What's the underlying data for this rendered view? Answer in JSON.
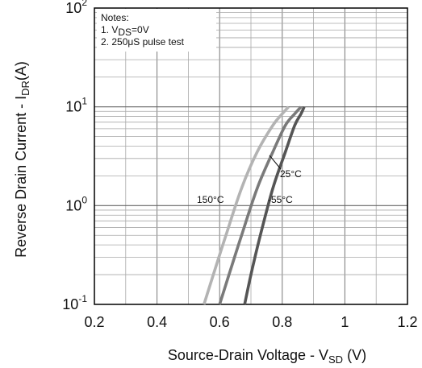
{
  "chart_data": {
    "type": "line",
    "title": "",
    "xlabel": {
      "prefix": "Source-Drain Voltage - V",
      "sub": "SD",
      "suffix": " (V)"
    },
    "ylabel": {
      "prefix": "Reverse Drain Current - I",
      "sub": "DR",
      "suffix": "(A)"
    },
    "x_scale": "linear",
    "y_scale": "log",
    "xlim": [
      0.2,
      1.2
    ],
    "ylim": [
      0.1,
      100
    ],
    "x_ticks": [
      "0.2",
      "0.4",
      "0.6",
      "0.8",
      "1",
      "1.2"
    ],
    "y_ticks": [
      {
        "value": 100,
        "base": "10",
        "exp": "2"
      },
      {
        "value": 10,
        "base": "10",
        "exp": "1"
      },
      {
        "value": 1,
        "base": "10",
        "exp": "0"
      },
      {
        "value": 0.1,
        "base": "10",
        "exp": "-1"
      }
    ],
    "grid": true,
    "notes": {
      "title": "Notes:",
      "line1": {
        "prefix": "1. V",
        "sub": "DS",
        "suffix": "=0V"
      },
      "line2": "2. 250μS pulse test"
    },
    "series": [
      {
        "name": "150°C",
        "color": "#b3b3b3",
        "x": [
          0.55,
          0.58,
          0.62,
          0.67,
          0.72,
          0.77,
          0.8,
          0.82
        ],
        "y": [
          0.1,
          0.2,
          0.5,
          1.5,
          3.5,
          6.5,
          8.5,
          10
        ]
      },
      {
        "name": "25°C",
        "color": "#7a7a7a",
        "x": [
          0.6,
          0.63,
          0.67,
          0.72,
          0.77,
          0.81,
          0.84,
          0.86
        ],
        "y": [
          0.1,
          0.2,
          0.5,
          1.5,
          3.5,
          6.5,
          8.5,
          10
        ]
      },
      {
        "name": "-55°C",
        "color": "#555555",
        "x": [
          0.68,
          0.7,
          0.73,
          0.77,
          0.81,
          0.84,
          0.86,
          0.87
        ],
        "y": [
          0.1,
          0.2,
          0.5,
          1.5,
          3.5,
          6.5,
          8.5,
          10
        ]
      }
    ]
  }
}
